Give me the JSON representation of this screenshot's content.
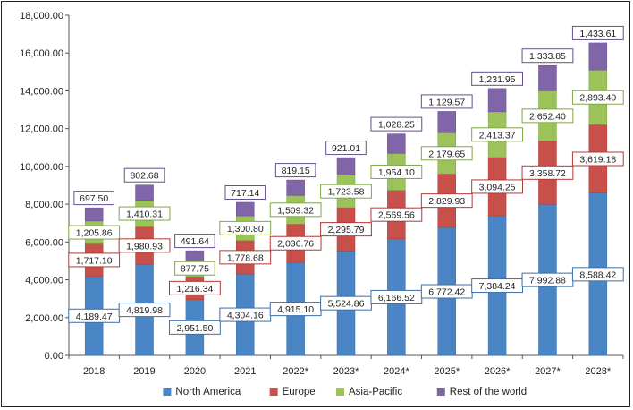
{
  "chart_data": {
    "type": "bar",
    "stacked": true,
    "title": "",
    "xlabel": "",
    "ylabel": "",
    "ylim": [
      0,
      18000
    ],
    "y_ticks": [
      "0.00",
      "2,000.00",
      "4,000.00",
      "6,000.00",
      "8,000.00",
      "10,000.00",
      "12,000.00",
      "14,000.00",
      "16,000.00",
      "18,000.00"
    ],
    "grid": false,
    "legend_position": "bottom",
    "categories": [
      "2018",
      "2019",
      "2020",
      "2021",
      "2022*",
      "2023*",
      "2024*",
      "2025*",
      "2026*",
      "2027*",
      "2028*"
    ],
    "series": [
      {
        "name": "North America",
        "color": "#4a86c6",
        "border": "#3a6ea8",
        "values": [
          4189.47,
          4819.98,
          2951.5,
          4304.16,
          4915.1,
          5524.86,
          6166.52,
          6772.42,
          7384.24,
          7992.88,
          8588.42
        ],
        "labels": [
          "4,189.47",
          "4,819.98",
          "2,951.50",
          "4,304.16",
          "4,915.10",
          "5,524.86",
          "6,166.52",
          "6,772.42",
          "7,384.24",
          "7,992.88",
          "8,588.42"
        ]
      },
      {
        "name": "Europe",
        "color": "#c8504a",
        "border": "#b03a35",
        "values": [
          1717.1,
          1980.93,
          1216.34,
          1778.68,
          2036.76,
          2295.79,
          2569.56,
          2829.93,
          3094.25,
          3358.72,
          3619.18
        ],
        "labels": [
          "1,717.10",
          "1,980.93",
          "1,216.34",
          "1,778.68",
          "2,036.76",
          "2,295.79",
          "2,569.56",
          "2,829.93",
          "3,094.25",
          "3,358.72",
          "3,619.18"
        ]
      },
      {
        "name": "Asia-Pacific",
        "color": "#9bc35a",
        "border": "#7fa544",
        "values": [
          1205.86,
          1410.31,
          877.75,
          1300.8,
          1509.32,
          1723.58,
          1954.1,
          2179.65,
          2413.37,
          2652.4,
          2893.4
        ],
        "labels": [
          "1,205.86",
          "1,410.31",
          "877.75",
          "1,300.80",
          "1,509.32",
          "1,723.58",
          "1,954.10",
          "2,179.65",
          "2,413.37",
          "2,652.40",
          "2,893.40"
        ]
      },
      {
        "name": "Rest of the world",
        "color": "#8066a8",
        "border": "#654f8e",
        "values": [
          697.5,
          802.68,
          491.64,
          717.14,
          819.15,
          921.01,
          1028.25,
          1129.57,
          1231.95,
          1333.85,
          1433.61
        ],
        "labels": [
          "697.50",
          "802.68",
          "491.64",
          "717.14",
          "819.15",
          "921.01",
          "1,028.25",
          "1,129.57",
          "1,231.95",
          "1,333.85",
          "1,433.61"
        ]
      }
    ]
  }
}
